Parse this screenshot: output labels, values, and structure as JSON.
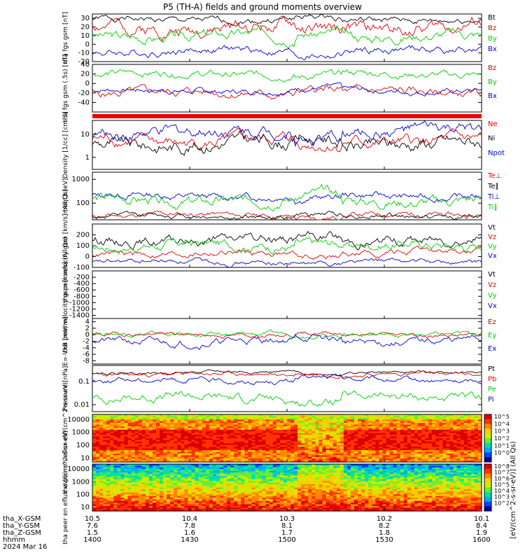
{
  "figure": {
    "title": "P5 (TH-A) fields and ground moments overview",
    "date": "2024 Mar 16",
    "colorbar_unit": "[eV/(cm^2-s-sr-eV)] (All Qs)",
    "colorbar_ticks": [
      "10^5",
      "10^4",
      "10^3",
      "10^2",
      "10^1",
      "10^0"
    ],
    "colorbar_ticks_lower": [
      "10^8",
      "10^7",
      "10^6",
      "10^5",
      "10^4",
      "10^3",
      "10^2"
    ]
  },
  "chart_data": [
    {
      "type": "line",
      "ylabel": "tha fgs gsm [nT]",
      "ylim": [
        -20,
        35
      ],
      "yticks": [
        -20,
        -10,
        0,
        10,
        20,
        30
      ],
      "series": [
        {
          "name": "Bt",
          "color": "#000000",
          "base": 28,
          "amp": 5,
          "seed": 1
        },
        {
          "name": "Bz",
          "color": "#dd0000",
          "base": 20,
          "amp": 10,
          "seed": 2
        },
        {
          "name": "By",
          "color": "#00cc00",
          "base": 10,
          "amp": 8,
          "seed": 3
        },
        {
          "name": "Bx",
          "color": "#0000cc",
          "base": -8,
          "amp": 6,
          "seed": 4
        }
      ]
    },
    {
      "type": "line",
      "ylabel": "tha fgs gsm (.5s) [nT]",
      "ylim": [
        -60,
        40
      ],
      "yticks": [
        -40,
        -20,
        0,
        20,
        40
      ],
      "series": [
        {
          "name": "Bz",
          "color": "#dd0000",
          "base": -20,
          "amp": 12,
          "seed": 5
        },
        {
          "name": "By",
          "color": "#00cc00",
          "base": 20,
          "amp": 10,
          "seed": 6
        },
        {
          "name": "Bx",
          "color": "#0000cc",
          "base": -15,
          "amp": 8,
          "seed": 7
        }
      ]
    },
    {
      "type": "line",
      "log": true,
      "ylabel": "Density [1/cc] [cm-3]",
      "ylim": [
        0.3,
        40
      ],
      "yticks": [
        1,
        10
      ],
      "series": [
        {
          "name": "Ne",
          "color": "#dd0000",
          "base": 0.7,
          "amp": 0.35,
          "seed": 8
        },
        {
          "name": "Ni",
          "color": "#000000",
          "base": 0.6,
          "amp": 0.4,
          "seed": 9
        },
        {
          "name": "Npot",
          "color": "#0000cc",
          "base": 1.1,
          "amp": 0.35,
          "seed": 10
        }
      ]
    },
    {
      "type": "line",
      "log": true,
      "ylabel": "moqt3 [eV]",
      "ylim": [
        20,
        2000
      ],
      "yticks": [
        100,
        1000
      ],
      "series": [
        {
          "name": "Te⊥",
          "color": "#dd0000",
          "base": 1.5,
          "amp": 0.15,
          "seed": 11
        },
        {
          "name": "Te∥",
          "color": "#000000",
          "base": 1.45,
          "amp": 0.15,
          "seed": 12
        },
        {
          "name": "Ti⊥",
          "color": "#0000cc",
          "base": 2.3,
          "amp": 0.2,
          "seed": 13
        },
        {
          "name": "Ti∥",
          "color": "#00cc00",
          "base": 2.1,
          "amp": 0.3,
          "seed": 14
        }
      ]
    },
    {
      "type": "line",
      "ylabel": "tha peir velocity gsm [km/s] (All Qs)",
      "ylim": [
        -100,
        300
      ],
      "yticks": [
        -100,
        0,
        100,
        200
      ],
      "series": [
        {
          "name": "Vt",
          "color": "#000000",
          "base": 150,
          "amp": 60,
          "seed": 15
        },
        {
          "name": "Vz",
          "color": "#dd0000",
          "base": 30,
          "amp": 40,
          "seed": 16
        },
        {
          "name": "Vy",
          "color": "#00cc00",
          "base": 100,
          "amp": 60,
          "seed": 17
        },
        {
          "name": "Vx",
          "color": "#0000cc",
          "base": -50,
          "amp": 30,
          "seed": 18
        }
      ]
    },
    {
      "type": "line",
      "empty": true,
      "ylabel": "tha peer velocity gsm [km/s] (All Qs)",
      "ylim": [
        -1500,
        0
      ],
      "yticks": [
        -1400,
        -1200,
        -1000,
        -800,
        -600,
        -400,
        -200
      ],
      "series": [
        {
          "name": "Vt",
          "color": "#000000"
        },
        {
          "name": "Vz",
          "color": "#dd0000"
        },
        {
          "name": "Vy",
          "color": "#00cc00"
        },
        {
          "name": "Vx",
          "color": "#0000cc"
        }
      ]
    },
    {
      "type": "line",
      "ylabel": "E=-VxB [mV/m]",
      "ylim": [
        -9,
        5
      ],
      "yticks": [
        -8,
        -6,
        -4,
        -2,
        0,
        2,
        4
      ],
      "series": [
        {
          "name": "Ez",
          "color": "#dd0000",
          "base": 0,
          "amp": 0.8,
          "seed": 19
        },
        {
          "name": "Ey",
          "color": "#00cc00",
          "base": 0.2,
          "amp": 0.9,
          "seed": 20
        },
        {
          "name": "Ex",
          "color": "#0000cc",
          "base": -2,
          "amp": 1.5,
          "seed": 21
        }
      ]
    },
    {
      "type": "line",
      "log": true,
      "ylabel": "Pressure [nPa]",
      "ylim": [
        0.005,
        0.5
      ],
      "yticks": [
        0.01,
        0.1
      ],
      "series": [
        {
          "name": "Pt",
          "color": "#000000",
          "base": -0.6,
          "amp": 0.08,
          "seed": 22
        },
        {
          "name": "Pb",
          "color": "#dd0000",
          "base": -0.7,
          "amp": 0.12,
          "seed": 23
        },
        {
          "name": "Pe",
          "color": "#00cc00",
          "base": -1.7,
          "amp": 0.25,
          "seed": 24
        },
        {
          "name": "Pi",
          "color": "#0000cc",
          "base": -0.95,
          "amp": 0.15,
          "seed": 25
        }
      ]
    },
    {
      "type": "heatmap",
      "ylabel": "tha peir en eflux eV/(cm^2-s-sr-eV)",
      "ylim": [
        5,
        25000
      ],
      "yticks": [
        10,
        100,
        1000,
        10000
      ],
      "seed": 26,
      "profile": "ion"
    },
    {
      "type": "heatmap",
      "ylabel": "tha peer en eflux eV/(cm^2-s-sr-eV)",
      "ylim": [
        5,
        25000
      ],
      "yticks": [
        10,
        100,
        1000,
        10000
      ],
      "seed": 27,
      "profile": "electron"
    }
  ],
  "xaxis": {
    "range": [
      "1400",
      "1600"
    ],
    "rows": [
      {
        "label": "tha_X-GSM",
        "values": [
          "10.5",
          "10.4",
          "10.3",
          "10.2",
          "10.1"
        ]
      },
      {
        "label": "tha_Y-GSM",
        "values": [
          "7.6",
          "7.8",
          "8.1",
          "8.2",
          "8.4"
        ]
      },
      {
        "label": "tha_Z-GSM",
        "values": [
          "1.5",
          "1.6",
          "1.7",
          "1.8",
          "1.9"
        ]
      },
      {
        "label": "hhmm",
        "values": [
          "1400",
          "1430",
          "1500",
          "1530",
          "1600"
        ]
      }
    ]
  }
}
